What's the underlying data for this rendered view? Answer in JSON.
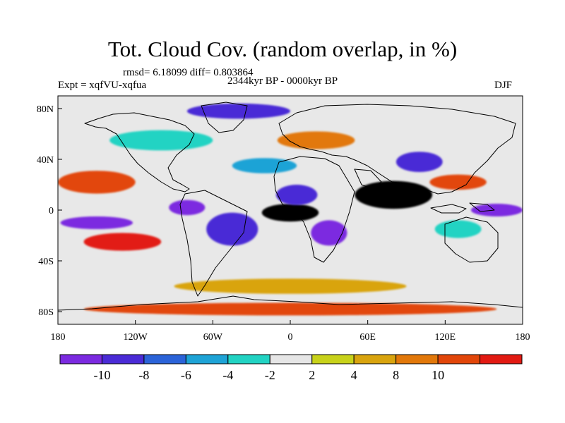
{
  "title": "Tot. Cloud Cov. (random overlap, in %)",
  "stats": "rmsd= 6.18099 diff= 0.803864",
  "period": "2344kyr BP - 0000kyr BP",
  "experiment": "Expt = xqfVU-xqfua",
  "season": "DJF",
  "map": {
    "projection": "cylindrical equidistant",
    "lon_range": [
      -180,
      180
    ],
    "lat_range": [
      -90,
      90
    ],
    "lon_ticks": [
      {
        "value": -180,
        "label": "180"
      },
      {
        "value": -120,
        "label": "120W"
      },
      {
        "value": -60,
        "label": "60W"
      },
      {
        "value": 0,
        "label": "0"
      },
      {
        "value": 60,
        "label": "60E"
      },
      {
        "value": 120,
        "label": "120E"
      },
      {
        "value": 180,
        "label": "180"
      }
    ],
    "lat_ticks": [
      {
        "value": 80,
        "label": "80N"
      },
      {
        "value": 40,
        "label": "40N"
      },
      {
        "value": 0,
        "label": "0"
      },
      {
        "value": -40,
        "label": "40S"
      },
      {
        "value": -80,
        "label": "80S"
      }
    ],
    "background_color": "#e8e8e8",
    "fields": [
      {
        "lon": 0,
        "lat": -2,
        "rx": 22,
        "ry": 7,
        "level": 11
      },
      {
        "lon": 30,
        "lat": -18,
        "rx": 14,
        "ry": 10,
        "level": 0
      },
      {
        "lon": 5,
        "lat": 12,
        "rx": 16,
        "ry": 8,
        "level": 1
      },
      {
        "lon": -45,
        "lat": -15,
        "rx": 20,
        "ry": 13,
        "level": 1
      },
      {
        "lon": -80,
        "lat": 2,
        "rx": 14,
        "ry": 6,
        "level": 0
      },
      {
        "lon": -150,
        "lat": -10,
        "rx": 28,
        "ry": 5,
        "level": 0
      },
      {
        "lon": -150,
        "lat": 22,
        "rx": 30,
        "ry": 9,
        "level": 9
      },
      {
        "lon": -130,
        "lat": -25,
        "rx": 30,
        "ry": 7,
        "level": 10
      },
      {
        "lon": 80,
        "lat": 12,
        "rx": 30,
        "ry": 11,
        "level": 11
      },
      {
        "lon": 100,
        "lat": 38,
        "rx": 18,
        "ry": 8,
        "level": 1
      },
      {
        "lon": 160,
        "lat": 0,
        "rx": 20,
        "ry": 5,
        "level": 0
      },
      {
        "lon": 130,
        "lat": -15,
        "rx": 18,
        "ry": 7,
        "level": 4
      },
      {
        "lon": 130,
        "lat": 22,
        "rx": 22,
        "ry": 6,
        "level": 9
      },
      {
        "lon": -40,
        "lat": 78,
        "rx": 40,
        "ry": 6,
        "level": 1
      },
      {
        "lon": 0,
        "lat": -60,
        "rx": 90,
        "ry": 6,
        "level": 7
      },
      {
        "lon": 0,
        "lat": -78,
        "rx": 160,
        "ry": 5,
        "level": 9
      },
      {
        "lon": 20,
        "lat": 55,
        "rx": 30,
        "ry": 7,
        "level": 8
      },
      {
        "lon": -100,
        "lat": 55,
        "rx": 40,
        "ry": 8,
        "level": 4
      },
      {
        "lon": -20,
        "lat": 35,
        "rx": 25,
        "ry": 6,
        "level": 3
      }
    ]
  },
  "colorbar": {
    "colors": [
      "#7b2ae0",
      "#4a2bd6",
      "#2b63d8",
      "#1ea3d6",
      "#22d3c3",
      "#e6e6e6",
      "#c8d21a",
      "#d9a40e",
      "#e2780a",
      "#e2460a",
      "#e21a12"
    ],
    "labels": [
      "-10",
      "-8",
      "-6",
      "-4",
      "-2",
      "2",
      "4",
      "8",
      "10"
    ]
  }
}
